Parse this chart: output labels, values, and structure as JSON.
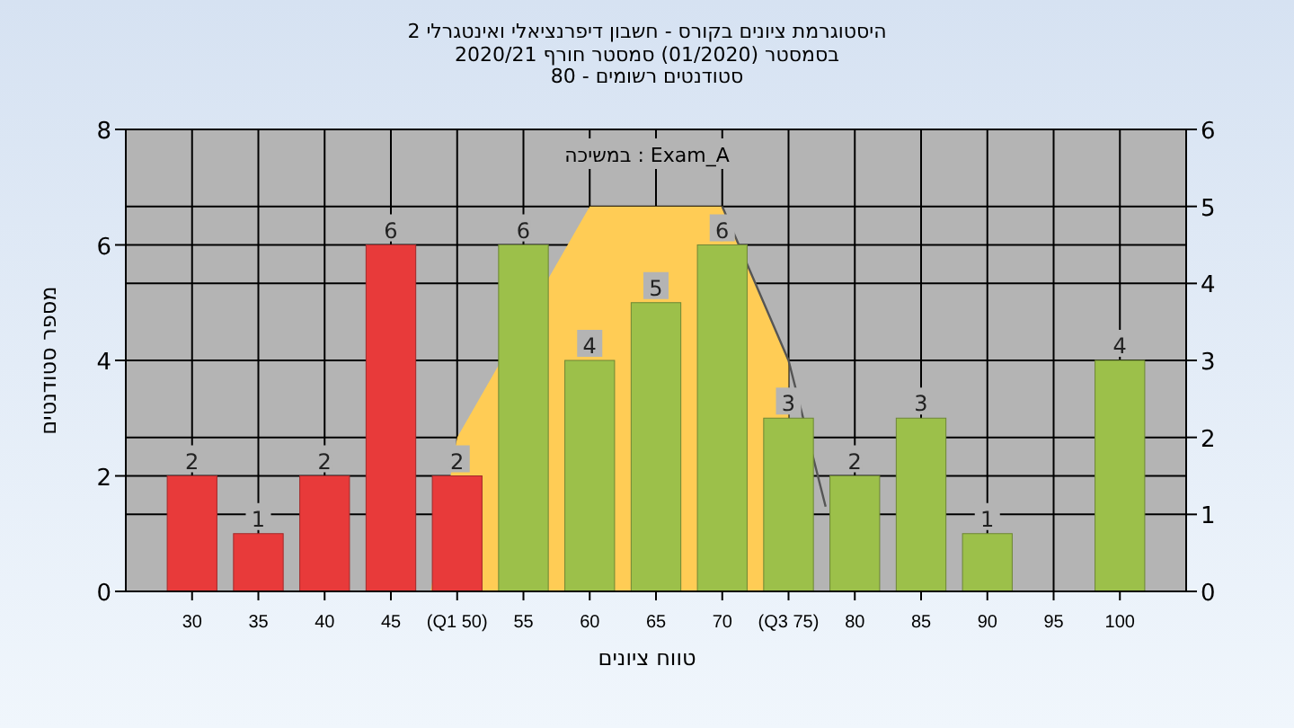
{
  "chart_data": {
    "type": "bar",
    "title": "היסטוגרמת ציונים בקורס - חשבון דיפרנציאלי ואינטגרלי 2",
    "subtitle": "בסמסטר (01/2020) סמסטר חורף 2020/21\nסטודנטים רשומים - 80",
    "xlabel": "טווח ציונים",
    "ylabel": "מספר סטודנטים",
    "annotations": [
      "Exam_A : במשיכה"
    ],
    "x": [
      30,
      35,
      40,
      45,
      50,
      55,
      60,
      65,
      70,
      75,
      80,
      85,
      90,
      95,
      100
    ],
    "xlim": [
      25,
      105
    ],
    "xticks": [
      30,
      35,
      40,
      45,
      {
        "value": 50,
        "label": "(Q1 50)"
      },
      55,
      60,
      65,
      70,
      {
        "value": 75,
        "label": "(Q3 75)"
      },
      80,
      85,
      90,
      95,
      100
    ],
    "ylim": [
      0,
      8
    ],
    "yticks": [
      0,
      2,
      4,
      6,
      8
    ],
    "y2lim": [
      0,
      6
    ],
    "y2ticks": [
      0,
      1,
      2,
      3,
      4,
      5,
      6
    ],
    "grid": true,
    "series": [
      {
        "type": "area",
        "axis": "y2",
        "color": "#ffcc55",
        "x": [
          48,
          50,
          60,
          70,
          75,
          75
        ],
        "values": [
          0,
          2,
          5,
          5,
          3,
          0
        ]
      },
      {
        "type": "line",
        "axis": "y2",
        "color": "#555555",
        "x": [
          70,
          75,
          77.8
        ],
        "values": [
          5,
          3,
          1.1
        ]
      },
      {
        "values": [
          2,
          1,
          2,
          6,
          2,
          6,
          4,
          5,
          6,
          3,
          2,
          3,
          1,
          0,
          4
        ],
        "value_labels": [
          "2",
          "1",
          "2",
          "6",
          "2",
          "6",
          "4",
          "5",
          "6",
          "3",
          "2",
          "3",
          "1",
          null,
          "4"
        ],
        "colors": [
          "#e83a3a",
          "#e83a3a",
          "#e83a3a",
          "#e83a3a",
          "#e83a3a",
          "#9cc04a",
          "#9cc04a",
          "#9cc04a",
          "#9cc04a",
          "#9cc04a",
          "#9cc04a",
          "#9cc04a",
          "#9cc04a",
          "#9cc04a",
          "#9cc04a"
        ]
      }
    ]
  }
}
